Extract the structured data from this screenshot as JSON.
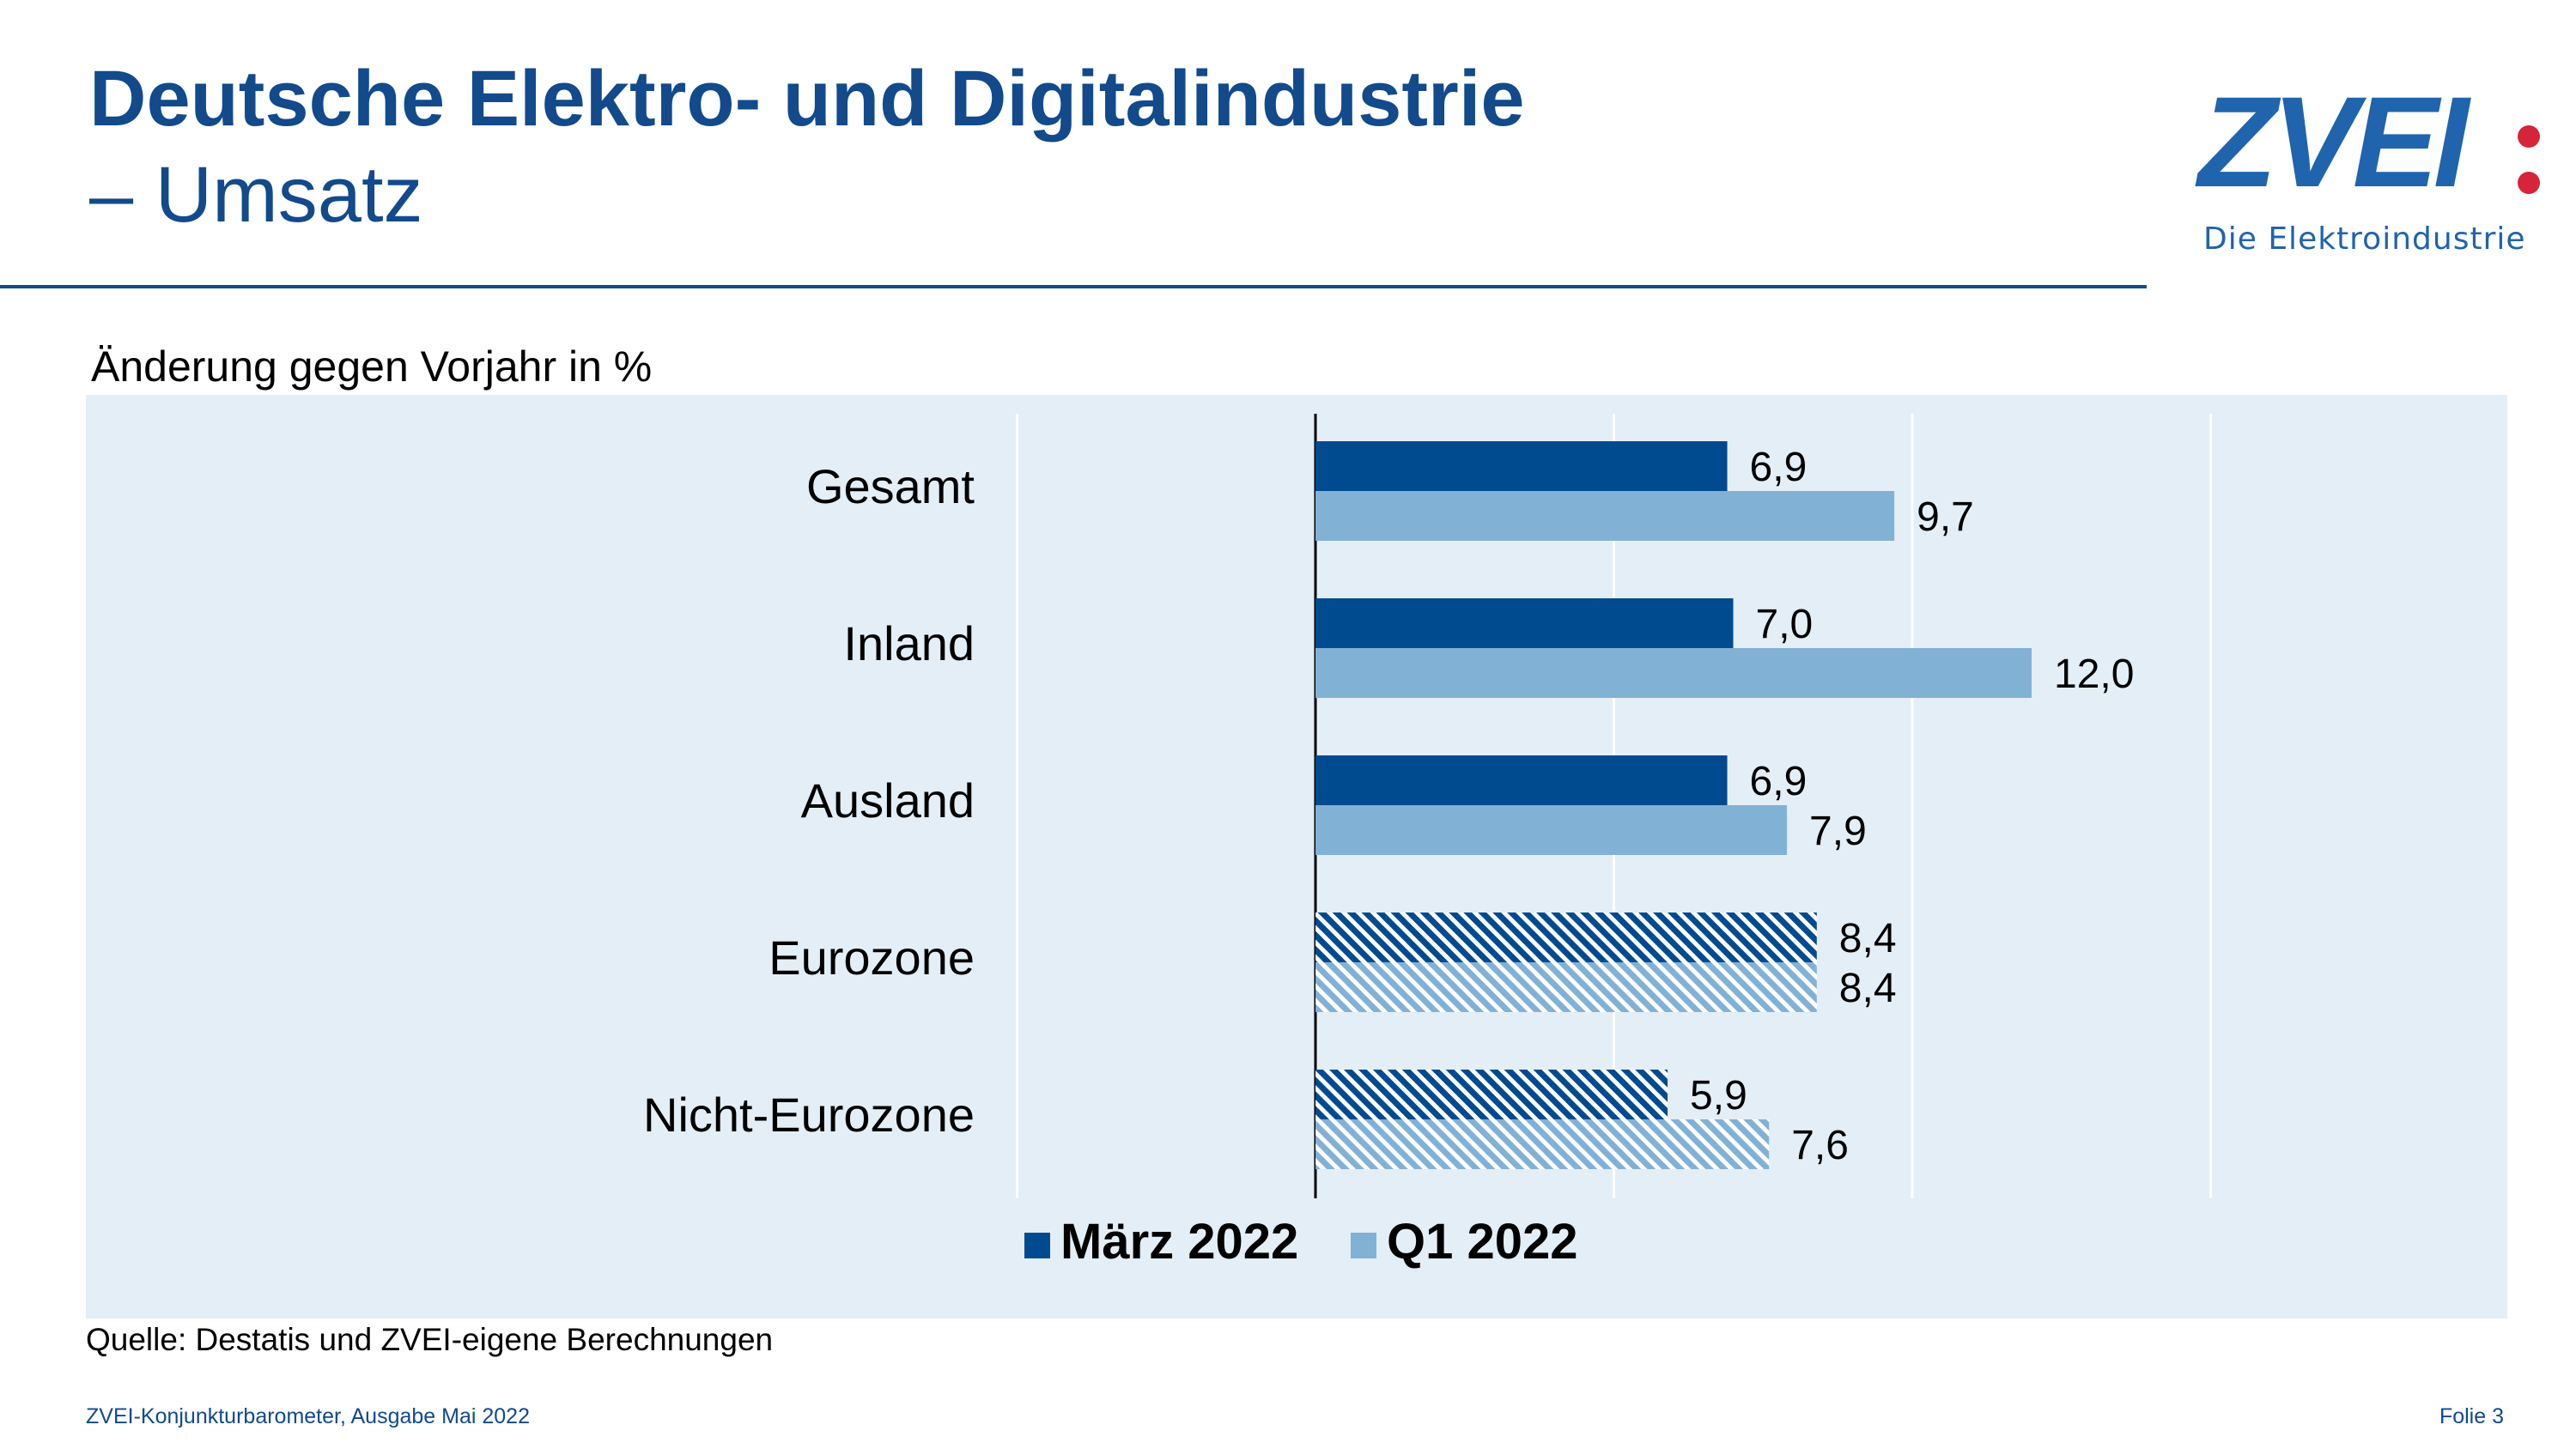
{
  "header": {
    "title": "Deutsche Elektro- und Digitalindustrie",
    "subtitle": "– Umsatz"
  },
  "logo": {
    "wordmark": "ZVEI",
    "tagline": "Die Elektroindustrie"
  },
  "chart_label": "Änderung gegen Vorjahr in %",
  "source": "Quelle: Destatis und ZVEI-eigene Berechnungen",
  "footer": {
    "left": "ZVEI-Konjunkturbarometer, Ausgabe Mai 2022",
    "right": "Folie 3"
  },
  "colors": {
    "title": "#124a8c",
    "series_1": "#004b8f",
    "series_2": "#82b1d6",
    "panel": "#e4eef6",
    "logo": "#2064ad",
    "logo_accent": "#d6243a"
  },
  "chart_data": {
    "type": "bar",
    "orientation": "horizontal",
    "categories": [
      "Gesamt",
      "Inland",
      "Ausland",
      "Eurozone",
      "Nicht-Eurozone"
    ],
    "hatched_categories": [
      "Eurozone",
      "Nicht-Eurozone"
    ],
    "series": [
      {
        "name": "März 2022",
        "values": [
          6.9,
          7.0,
          6.9,
          8.4,
          5.9
        ],
        "labels": [
          "6,9",
          "7,0",
          "6,9",
          "8,4",
          "5,9"
        ]
      },
      {
        "name": "Q1 2022",
        "values": [
          9.7,
          12.0,
          7.9,
          8.4,
          7.6
        ],
        "labels": [
          "9,7",
          "12,0",
          "7,9",
          "8,4",
          "7,6"
        ]
      }
    ],
    "xlim": [
      -5,
      15
    ],
    "x_gridlines": [
      -5,
      0,
      5,
      10,
      15
    ],
    "x_tick_labels_shown": false,
    "grid": true,
    "legend": "bottom-center"
  }
}
